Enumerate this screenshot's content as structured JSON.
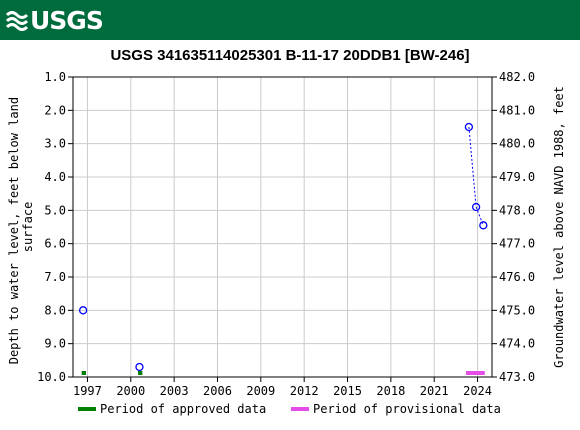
{
  "header": {
    "logo_text": "USGS",
    "logo_icon": "usgs-wave-icon"
  },
  "chart_data": {
    "type": "scatter",
    "title": "USGS 341635114025301 B-11-17 20DDB1 [BW-246]",
    "ylabel_left": "Depth to water level, feet below land surface",
    "ylabel_left_lines": [
      "Depth to water level, feet below land",
      "surface"
    ],
    "ylabel_right": "Groundwater level above NAVD 1988, feet",
    "x_ticks": [
      "1997",
      "2000",
      "2003",
      "2006",
      "2009",
      "2012",
      "2015",
      "2018",
      "2021",
      "2024"
    ],
    "x_tick_values": [
      1997,
      2000,
      2003,
      2006,
      2009,
      2012,
      2015,
      2018,
      2021,
      2024
    ],
    "xlim": [
      1996,
      2025
    ],
    "y_left_ticks": [
      "1.0",
      "2.0",
      "3.0",
      "4.0",
      "5.0",
      "6.0",
      "7.0",
      "8.0",
      "9.0",
      "10.0"
    ],
    "y_left_tick_values": [
      1,
      2,
      3,
      4,
      5,
      6,
      7,
      8,
      9,
      10
    ],
    "ylim_left": [
      1,
      10
    ],
    "y_left_inverted": true,
    "y_right_ticks": [
      "482.0",
      "481.0",
      "480.0",
      "479.0",
      "478.0",
      "477.0",
      "476.0",
      "475.0",
      "474.0",
      "473.0"
    ],
    "y_right_tick_values": [
      482,
      481,
      480,
      479,
      478,
      477,
      476,
      475,
      474,
      473
    ],
    "ylim_right": [
      473,
      482
    ],
    "grid": true,
    "series": [
      {
        "points": [
          {
            "x": 1996.7,
            "y": 8.0
          },
          {
            "x": 2000.6,
            "y": 9.7
          },
          {
            "x": 2023.4,
            "y": 2.5
          },
          {
            "x": 2023.9,
            "y": 4.9
          },
          {
            "x": 2024.4,
            "y": 5.45
          }
        ],
        "dashed_segments": [
          [
            2,
            3
          ],
          [
            3,
            4
          ]
        ],
        "marker": "open-circle",
        "color": "#0000ff"
      }
    ],
    "periods": [
      {
        "kind": "approved",
        "start": 1996.6,
        "end": 1996.9,
        "color": "#008000"
      },
      {
        "kind": "approved",
        "start": 2000.5,
        "end": 2000.8,
        "color": "#008000"
      },
      {
        "kind": "provisional",
        "start": 2023.2,
        "end": 2024.5,
        "color": "#e64de6"
      }
    ],
    "legend": {
      "placement": "bottom",
      "items": [
        {
          "label": "Period of approved data",
          "color": "#008000"
        },
        {
          "label": "Period of provisional data",
          "color": "#e64de6"
        }
      ]
    }
  }
}
